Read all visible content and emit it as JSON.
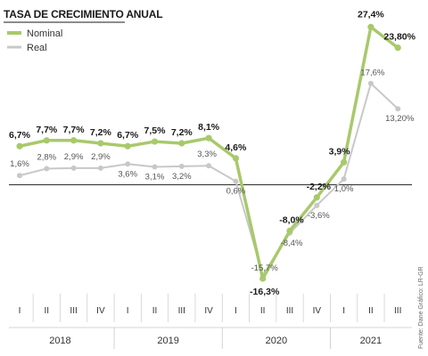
{
  "chart_data": {
    "type": "line",
    "title": "TASA DE CRECIMIENTO ANUAL",
    "categories": [
      "I",
      "II",
      "III",
      "IV",
      "I",
      "II",
      "III",
      "IV",
      "I",
      "II",
      "III",
      "IV",
      "I",
      "II",
      "III"
    ],
    "years": [
      {
        "label": "2018",
        "start": 0,
        "end": 3
      },
      {
        "label": "2019",
        "start": 4,
        "end": 7
      },
      {
        "label": "2020",
        "start": 8,
        "end": 11
      },
      {
        "label": "2021",
        "start": 12,
        "end": 14
      }
    ],
    "ylim": [
      -18,
      29
    ],
    "legend_position": "top-left",
    "grid": false,
    "series": [
      {
        "name": "Nominal",
        "color": "#a8c96b",
        "values": [
          6.7,
          7.7,
          7.7,
          7.2,
          6.7,
          7.5,
          7.2,
          8.1,
          4.6,
          -16.3,
          -8.0,
          -2.2,
          3.9,
          27.4,
          23.8
        ],
        "labels": [
          "6,7%",
          "7,7%",
          "7,7%",
          "7,2%",
          "6,7%",
          "7,5%",
          "7,2%",
          "8,1%",
          "4,6%",
          "-16,3%",
          "-8,0%",
          "-2,2%",
          "3,9%",
          "27,4%",
          "23,80%"
        ]
      },
      {
        "name": "Real",
        "color": "#c8c8c8",
        "values": [
          1.6,
          2.8,
          2.9,
          2.9,
          3.6,
          3.1,
          3.2,
          3.3,
          0.6,
          -15.7,
          -8.4,
          -3.6,
          1.0,
          17.6,
          13.2
        ],
        "labels": [
          "1,6%",
          "2,8%",
          "2,9%",
          "2,9%",
          "3,6%",
          "3,1%",
          "3,2%",
          "3,3%",
          "0,6%",
          "-15,7%",
          "-8,4%",
          "-3,6%",
          "1,0%",
          "17,6%",
          "13,20%"
        ]
      }
    ],
    "source": "Fuente: Dane  Gráfico: LR-GR"
  }
}
